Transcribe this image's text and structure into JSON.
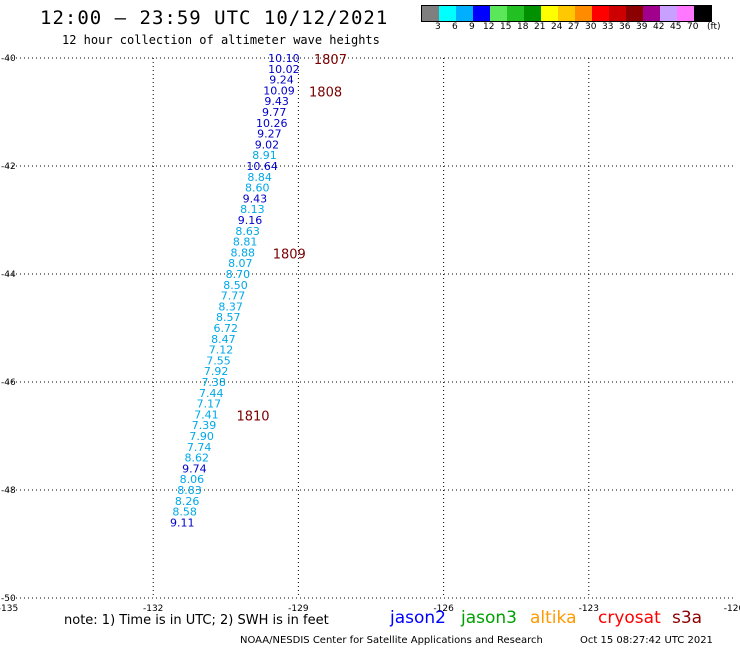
{
  "header": {
    "title": "12:00 — 23:59 UTC 10/12/2021",
    "subtitle": "12 hour collection of altimeter wave heights"
  },
  "color_scale": {
    "colors": [
      "#7f7f7f",
      "#00ffff",
      "#00b0ff",
      "#0000ff",
      "#5ae85a",
      "#22c022",
      "#009000",
      "#ffff00",
      "#ffc800",
      "#ff8c00",
      "#ff0000",
      "#cc0000",
      "#8b0000",
      "#a0008c",
      "#c8a0ff",
      "#ff78ff",
      "#000000"
    ],
    "labels": [
      "3",
      "6",
      "9",
      "12",
      "15",
      "18",
      "21",
      "24",
      "27",
      "30",
      "33",
      "36",
      "39",
      "42",
      "45",
      "70"
    ],
    "unit": "(ft)"
  },
  "chart_data": {
    "type": "scatter",
    "x_axis": {
      "ticks": [
        -135,
        -132,
        -129,
        -126,
        -123,
        -120
      ],
      "labels": [
        "-135",
        "-132",
        "-129",
        "-126",
        "-123",
        "-120"
      ]
    },
    "y_axis": {
      "ticks": [
        -40,
        -42,
        -44,
        -46,
        -48,
        -50
      ],
      "labels": [
        "-40",
        "-42",
        "-44",
        "-46",
        "-48",
        "-50"
      ]
    },
    "grid": true,
    "wave_heights": [
      {
        "lon": -129.3,
        "lat": -40.0,
        "value": "10.10",
        "color": "#0000c8"
      },
      {
        "lon": -129.3,
        "lat": -40.2,
        "value": "10.02",
        "color": "#0000c8"
      },
      {
        "lon": -129.35,
        "lat": -40.4,
        "value": "9.24",
        "color": "#0000c8"
      },
      {
        "lon": -129.4,
        "lat": -40.6,
        "value": "10.09",
        "color": "#0000c8"
      },
      {
        "lon": -129.45,
        "lat": -40.8,
        "value": "9.43",
        "color": "#0000c8"
      },
      {
        "lon": -129.5,
        "lat": -41.0,
        "value": "9.77",
        "color": "#0000c8"
      },
      {
        "lon": -129.55,
        "lat": -41.2,
        "value": "10.26",
        "color": "#0000c8"
      },
      {
        "lon": -129.6,
        "lat": -41.4,
        "value": "9.27",
        "color": "#0000c8"
      },
      {
        "lon": -129.65,
        "lat": -41.6,
        "value": "9.02",
        "color": "#0000c8"
      },
      {
        "lon": -129.7,
        "lat": -41.8,
        "value": "8.91",
        "color": "#00a8e8"
      },
      {
        "lon": -129.75,
        "lat": -42.0,
        "value": "10.64",
        "color": "#0000c8"
      },
      {
        "lon": -129.8,
        "lat": -42.2,
        "value": "8.84",
        "color": "#00a8e8"
      },
      {
        "lon": -129.85,
        "lat": -42.4,
        "value": "8.60",
        "color": "#00a8e8"
      },
      {
        "lon": -129.9,
        "lat": -42.6,
        "value": "9.43",
        "color": "#0000c8"
      },
      {
        "lon": -129.95,
        "lat": -42.8,
        "value": "8.13",
        "color": "#00a8e8"
      },
      {
        "lon": -130.0,
        "lat": -43.0,
        "value": "9.16",
        "color": "#0000c8"
      },
      {
        "lon": -130.05,
        "lat": -43.2,
        "value": "8.63",
        "color": "#00a8e8"
      },
      {
        "lon": -130.1,
        "lat": -43.4,
        "value": "8.81",
        "color": "#00a8e8"
      },
      {
        "lon": -130.15,
        "lat": -43.6,
        "value": "8.88",
        "color": "#00a8e8"
      },
      {
        "lon": -130.2,
        "lat": -43.8,
        "value": "8.07",
        "color": "#00a8e8"
      },
      {
        "lon": -130.25,
        "lat": -44.0,
        "value": "8.70",
        "color": "#00a8e8"
      },
      {
        "lon": -130.3,
        "lat": -44.2,
        "value": "8.50",
        "color": "#00a8e8"
      },
      {
        "lon": -130.35,
        "lat": -44.4,
        "value": "7.77",
        "color": "#00a8e8"
      },
      {
        "lon": -130.4,
        "lat": -44.6,
        "value": "8.37",
        "color": "#00a8e8"
      },
      {
        "lon": -130.45,
        "lat": -44.8,
        "value": "8.57",
        "color": "#00a8e8"
      },
      {
        "lon": -130.5,
        "lat": -45.0,
        "value": "6.72",
        "color": "#00a8e8"
      },
      {
        "lon": -130.55,
        "lat": -45.2,
        "value": "8.47",
        "color": "#00a8e8"
      },
      {
        "lon": -130.6,
        "lat": -45.4,
        "value": "7.12",
        "color": "#00a8e8"
      },
      {
        "lon": -130.65,
        "lat": -45.6,
        "value": "7.55",
        "color": "#00a8e8"
      },
      {
        "lon": -130.7,
        "lat": -45.8,
        "value": "7.92",
        "color": "#00a8e8"
      },
      {
        "lon": -130.75,
        "lat": -46.0,
        "value": "7.38",
        "color": "#00a8e8"
      },
      {
        "lon": -130.8,
        "lat": -46.2,
        "value": "7.44",
        "color": "#00a8e8"
      },
      {
        "lon": -130.85,
        "lat": -46.4,
        "value": "7.17",
        "color": "#00a8e8"
      },
      {
        "lon": -130.9,
        "lat": -46.6,
        "value": "7.41",
        "color": "#00a8e8"
      },
      {
        "lon": -130.95,
        "lat": -46.8,
        "value": "7.39",
        "color": "#00a8e8"
      },
      {
        "lon": -131.0,
        "lat": -47.0,
        "value": "7.90",
        "color": "#00a8e8"
      },
      {
        "lon": -131.05,
        "lat": -47.2,
        "value": "7.74",
        "color": "#00a8e8"
      },
      {
        "lon": -131.1,
        "lat": -47.4,
        "value": "8.62",
        "color": "#00a8e8"
      },
      {
        "lon": -131.15,
        "lat": -47.6,
        "value": "9.74",
        "color": "#0000c8"
      },
      {
        "lon": -131.2,
        "lat": -47.8,
        "value": "8.06",
        "color": "#00a8e8"
      },
      {
        "lon": -131.25,
        "lat": -48.0,
        "value": "8.83",
        "color": "#00a8e8"
      },
      {
        "lon": -131.3,
        "lat": -48.2,
        "value": "8.26",
        "color": "#00a8e8"
      },
      {
        "lon": -131.35,
        "lat": -48.4,
        "value": "8.58",
        "color": "#00a8e8"
      },
      {
        "lon": -131.4,
        "lat": -48.6,
        "value": "9.11",
        "color": "#0000c8"
      }
    ],
    "time_markers": [
      {
        "lon": -129.3,
        "lat": -40.0,
        "label": "1807"
      },
      {
        "lon": -129.4,
        "lat": -40.6,
        "label": "1808"
      },
      {
        "lon": -130.15,
        "lat": -43.6,
        "label": "1809"
      },
      {
        "lon": -130.9,
        "lat": -46.6,
        "label": "1810"
      }
    ],
    "marker_color": "#7a0000"
  },
  "footer": {
    "note": "note: 1) Time is in UTC; 2) SWH is in feet",
    "satellites": [
      {
        "name": "jason2",
        "color": "#0000ff"
      },
      {
        "name": "jason3",
        "color": "#00a000"
      },
      {
        "name": "altika",
        "color": "#ff9900"
      },
      {
        "name": "cryosat",
        "color": "#ff0000"
      },
      {
        "name": "s3a",
        "color": "#8b0000"
      }
    ],
    "credit": "NOAA/NESDIS Center for Satellite Applications and Research",
    "timestamp": "Oct 15 08:27:42 UTC 2021"
  }
}
